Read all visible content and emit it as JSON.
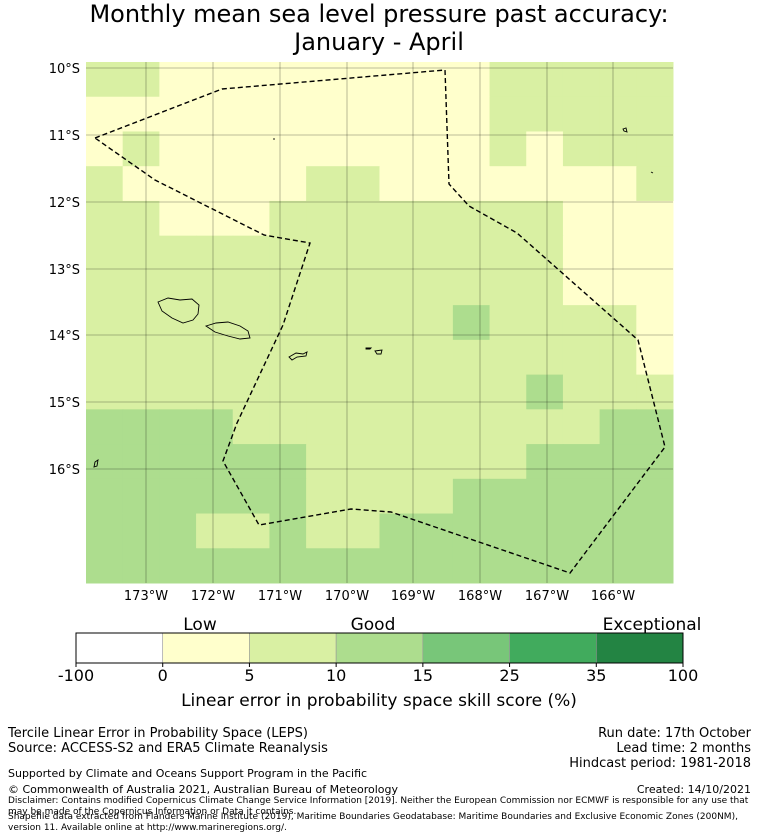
{
  "title_line1": "Monthly mean sea level pressure past accuracy:",
  "title_line2": "January - April",
  "lat_labels": [
    "10°S",
    "11°S",
    "12°S",
    "13°S",
    "14°S",
    "15°S",
    "16°S"
  ],
  "lon_labels": [
    "173°W",
    "172°W",
    "171°W",
    "170°W",
    "169°W",
    "168°W",
    "167°W",
    "166°W"
  ],
  "category_labels": {
    "low": "Low",
    "good": "Good",
    "exceptional": "Exceptional"
  },
  "colorbar_ticks": [
    "-100",
    "0",
    "5",
    "10",
    "15",
    "25",
    "35",
    "100"
  ],
  "colorbar_colors": [
    "#ffffff",
    "#ffffcc",
    "#d9f0a3",
    "#addd8e",
    "#78c679",
    "#41ab5d",
    "#238443"
  ],
  "colorbar_label": "Linear error in probability space skill score (%)",
  "info_left": {
    "line1": "Tercile Linear Error in Probability Space (LEPS)",
    "line2": "Source: ACCESS-S2 and ERA5 Climate Reanalysis"
  },
  "info_right": {
    "run_date": "Run date: 17th October",
    "lead_time": "Lead time: 2 months",
    "hindcast": "Hindcast period: 1981-2018"
  },
  "supported_by": "Supported by Climate and Oceans Support Program in the Pacific",
  "copyright": "© Commonwealth of Australia 2021, Australian Bureau of Meteorology",
  "created": "Created: 14/10/2021",
  "disclaimer": "Disclaimer: Contains modified Copernicus Climate Change Service Information [2019]. Neither the European Commission nor ECMWF is responsible for any use that may be made of the Copernicus Information or Data it contains.",
  "shapefile_line1": "Shapefile data extracted from Flanders Marine Institute (2019), Maritime Boundaries Geodatabase: Maritime Boundaries and Exclusive Economic Zones (200NM),",
  "shapefile_line2": "version 11. Available online at http://www.marineregions.org/.",
  "grid_cells": [
    "GGLLLLLLLLLGGGGG",
    "LLLLLLLLLLLGGGGG",
    "LGLLLLLLLLLGLGGG",
    "GLLLLLGGLLLLLLLG",
    "GGLLLGGGGGGGGLLL",
    "GGGGGGGGGGGGGLLL",
    "GGGGGGGGGGGGGLLL",
    "GGGGGGGGGGMGGGGL",
    "GGGGGGGGGGGGGGGL",
    "GGGGGGGGGGGGMGGG",
    "MMMMGGGGGGGGGGMM",
    "MMMMMMGGGGGGMMMM",
    "MMMMMMGGGGMMMMMM",
    "MMMGGMGGMMMMMMMM",
    "MMMMMMMMMMMMMMMM"
  ],
  "legend_keys": {
    "L": "#ffffcc",
    "G": "#d9f0a3",
    "M": "#addd8e"
  }
}
